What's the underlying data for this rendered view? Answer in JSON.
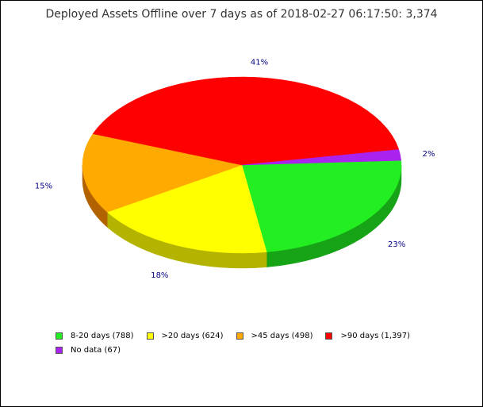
{
  "chart_data": {
    "type": "pie",
    "title": "Deployed Assets Offline over 7 days as of 2018-02-27 06:17:50: 3,374",
    "legend_placement": "bottom",
    "slices": [
      {
        "label": "8-20 days (788)",
        "value": 788,
        "percent_label": "23%",
        "color": "#22ee22",
        "side_color": "#16a316"
      },
      {
        "label": ">20 days (624)",
        "value": 624,
        "percent_label": "18%",
        "color": "#ffff00",
        "side_color": "#b3b300"
      },
      {
        "label": ">45 days (498)",
        "value": 498,
        "percent_label": "15%",
        "color": "#ffaa00",
        "side_color": "#b36200"
      },
      {
        "label": ">90 days (1,397)",
        "value": 1397,
        "percent_label": "41%",
        "color": "#ff0000",
        "side_color": "#aa0000"
      },
      {
        "label": "No data (67)",
        "value": 67,
        "percent_label": "2%",
        "color": "#aa22ee",
        "side_color": "#6a1599"
      }
    ]
  }
}
